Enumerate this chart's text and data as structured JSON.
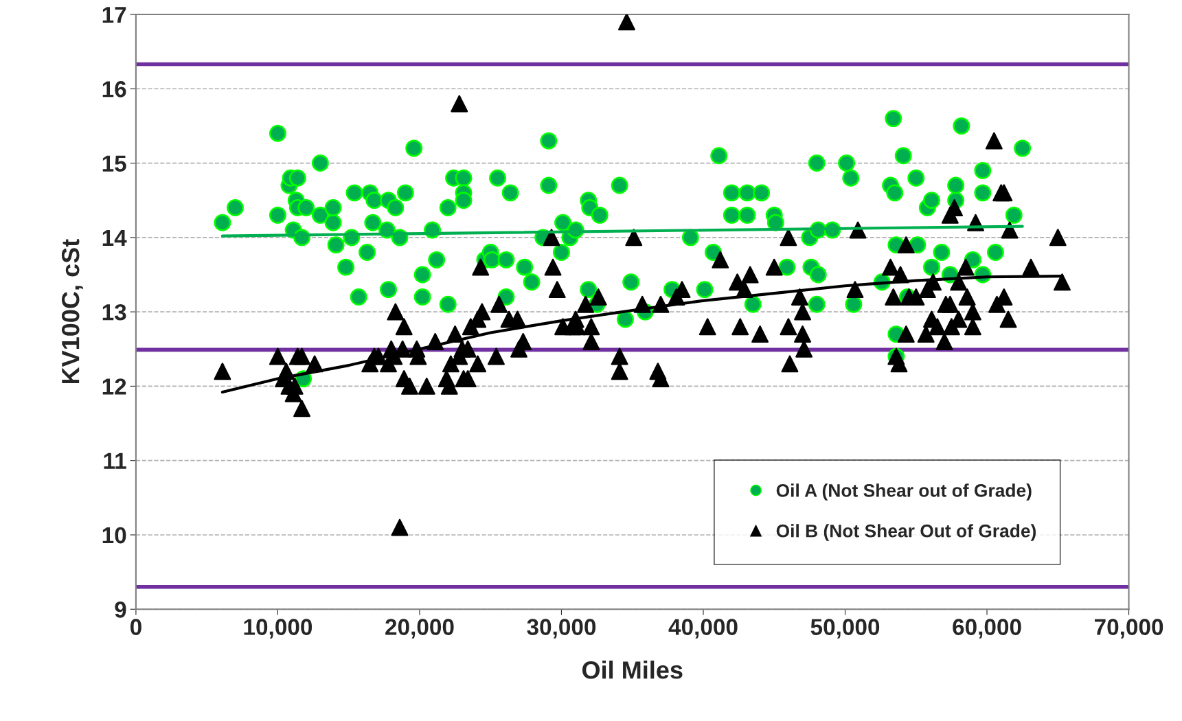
{
  "chart_data": {
    "type": "scatter",
    "xlabel": "Oil Miles",
    "ylabel": "KV100C, cSt",
    "xlim": [
      0,
      70000
    ],
    "xticks": [
      0,
      {
        "value": 10000,
        "label": "10,000"
      },
      {
        "value": 20000,
        "label": "20,000"
      },
      {
        "value": 30000,
        "label": "30,000"
      },
      {
        "value": 40000,
        "label": "40,000"
      },
      {
        "value": 50000,
        "label": "50,000"
      },
      {
        "value": 60000,
        "label": "60,000"
      },
      {
        "value": 70000,
        "label": "70,000"
      }
    ],
    "ylim": [
      9,
      17
    ],
    "yticks": [
      9,
      10,
      11,
      12,
      13,
      14,
      15,
      16,
      17
    ],
    "grid": "y",
    "legend": "bottom right",
    "ref_lines": [
      {
        "axis": "y",
        "value": 16.33,
        "color": "#7030a0"
      },
      {
        "axis": "y",
        "value": 12.49,
        "color": "#7030a0"
      },
      {
        "axis": "y",
        "value": 9.3,
        "color": "#7030a0"
      }
    ],
    "series": [
      {
        "name": "Oil A (Not Shear out of Grade)",
        "marker": "circle",
        "color": "#00b050",
        "x": [
          6100,
          7000,
          10000,
          10000,
          10800,
          10900,
          11100,
          11300,
          11400,
          11400,
          11700,
          11800,
          12000,
          13000,
          13000,
          13900,
          13900,
          14100,
          14800,
          15200,
          15400,
          15700,
          16300,
          16500,
          16700,
          16800,
          17700,
          17800,
          17800,
          18300,
          18600,
          19000,
          19600,
          20200,
          20200,
          20900,
          21200,
          22000,
          22000,
          22400,
          23100,
          23100,
          23100,
          24600,
          25000,
          25100,
          25500,
          26100,
          26100,
          26400,
          27400,
          27900,
          28700,
          29100,
          29100,
          30000,
          30100,
          30600,
          31000,
          31900,
          32000,
          31900,
          32500,
          32700,
          34100,
          34500,
          34900,
          35900,
          37800,
          39100,
          40100,
          40700,
          41100,
          42000,
          42000,
          43100,
          43100,
          43500,
          44100,
          45000,
          45100,
          45900,
          47500,
          47600,
          48000,
          48100,
          48000,
          48100,
          49100,
          50100,
          50400,
          50600,
          52600,
          53200,
          53400,
          53500,
          53600,
          53600,
          53600,
          54100,
          54400,
          55000,
          55100,
          55800,
          56100,
          56100,
          56800,
          57400,
          57800,
          57800,
          58200,
          59000,
          59700,
          59700,
          59700,
          60600,
          61900,
          62500
        ],
        "values": [
          14.2,
          14.4,
          15.4,
          14.3,
          14.7,
          14.8,
          14.1,
          14.5,
          14.4,
          14.8,
          14.0,
          12.1,
          14.4,
          15.0,
          14.3,
          14.2,
          14.4,
          13.9,
          13.6,
          14.0,
          14.6,
          13.2,
          13.8,
          14.6,
          14.2,
          14.5,
          14.1,
          14.5,
          13.3,
          14.4,
          14.0,
          14.6,
          15.2,
          13.5,
          13.2,
          14.1,
          13.7,
          13.1,
          14.4,
          14.8,
          14.8,
          14.6,
          14.5,
          13.7,
          13.8,
          13.7,
          14.8,
          13.7,
          13.2,
          14.6,
          13.6,
          13.4,
          14.0,
          15.3,
          14.7,
          13.8,
          14.2,
          14.0,
          14.1,
          14.5,
          14.4,
          13.3,
          13.1,
          14.3,
          14.7,
          12.9,
          13.4,
          13.0,
          13.3,
          14.0,
          13.3,
          13.8,
          15.1,
          14.6,
          14.3,
          14.6,
          14.3,
          13.1,
          14.6,
          14.3,
          14.2,
          13.6,
          14.0,
          13.6,
          15.0,
          14.1,
          13.1,
          13.5,
          14.1,
          15.0,
          14.8,
          13.1,
          13.4,
          14.7,
          15.6,
          14.6,
          13.9,
          12.7,
          12.4,
          15.1,
          13.2,
          14.8,
          13.9,
          14.4,
          14.5,
          13.6,
          13.8,
          13.5,
          14.5,
          14.7,
          15.5,
          13.7,
          14.9,
          14.6,
          13.5,
          13.8,
          14.3,
          15.2
        ]
      },
      {
        "name": "Oil B (Not Shear Out of Grade)",
        "marker": "triangle",
        "color": "#000000",
        "x": [
          6100,
          10000,
          10400,
          10600,
          10800,
          11100,
          11200,
          11400,
          11700,
          11700,
          12600,
          16500,
          16800,
          17100,
          17800,
          18000,
          18200,
          18300,
          18600,
          18800,
          18900,
          18900,
          19300,
          19800,
          19900,
          20500,
          21100,
          21900,
          22100,
          22200,
          22500,
          22800,
          22800,
          23000,
          23100,
          23400,
          23400,
          23600,
          24100,
          24100,
          24300,
          24400,
          25400,
          25600,
          26300,
          26900,
          27000,
          27300,
          29300,
          29400,
          29700,
          30100,
          30800,
          31000,
          31100,
          31700,
          32100,
          32100,
          32600,
          34100,
          34100,
          34600,
          35100,
          35700,
          36800,
          37000,
          37000,
          38100,
          38500,
          40300,
          41200,
          42400,
          42600,
          42900,
          43300,
          44000,
          45000,
          46000,
          46000,
          46100,
          46800,
          47000,
          47000,
          47100,
          50900,
          50700,
          53200,
          53400,
          53600,
          53900,
          53800,
          54300,
          54300,
          54500,
          55000,
          55700,
          55800,
          56100,
          56200,
          56500,
          57000,
          57100,
          57400,
          57400,
          57500,
          57700,
          58000,
          58000,
          58500,
          58600,
          59000,
          59200,
          59000,
          60500,
          60700,
          61000,
          61200,
          61200,
          61500,
          61600,
          63100,
          65000,
          65300
        ],
        "values": [
          12.2,
          12.4,
          12.1,
          12.2,
          12.0,
          11.9,
          12.0,
          12.4,
          12.4,
          11.7,
          12.3,
          12.3,
          12.4,
          12.4,
          12.3,
          12.5,
          12.4,
          13.0,
          10.1,
          12.5,
          12.1,
          12.8,
          12.0,
          12.5,
          12.4,
          12.0,
          12.6,
          12.1,
          12.0,
          12.3,
          12.7,
          12.4,
          15.8,
          12.5,
          12.1,
          12.1,
          12.5,
          12.8,
          12.9,
          12.3,
          13.6,
          13.0,
          12.4,
          13.1,
          12.9,
          12.9,
          12.5,
          12.6,
          14.0,
          13.6,
          13.3,
          12.8,
          12.8,
          12.9,
          12.8,
          13.1,
          12.8,
          12.6,
          13.2,
          12.4,
          12.2,
          16.9,
          14.0,
          13.1,
          12.2,
          12.1,
          13.1,
          13.2,
          13.3,
          12.8,
          13.7,
          13.4,
          12.8,
          13.3,
          13.5,
          12.7,
          13.6,
          14.0,
          12.8,
          12.3,
          13.2,
          13.0,
          12.7,
          12.5,
          14.1,
          13.3,
          13.6,
          13.2,
          12.4,
          13.5,
          12.3,
          13.9,
          12.7,
          13.2,
          13.2,
          12.7,
          13.3,
          12.9,
          13.4,
          12.8,
          12.6,
          13.1,
          13.1,
          14.3,
          12.8,
          14.4,
          13.4,
          12.9,
          13.6,
          13.2,
          12.8,
          14.2,
          13.0,
          15.3,
          13.1,
          14.6,
          14.6,
          13.2,
          12.9,
          14.1,
          13.6,
          14.0,
          13.4
        ]
      },
      {
        "type": "line",
        "color": "#00b050",
        "x": [
          6100,
          62500
        ],
        "values": [
          14.02,
          14.15
        ]
      },
      {
        "type": "line",
        "color": "#000000",
        "x": [
          6100,
          10000,
          15000,
          20000,
          25000,
          30000,
          35000,
          40000,
          45000,
          50000,
          55000,
          60000,
          65300
        ],
        "values": [
          11.92,
          12.1,
          12.28,
          12.5,
          12.72,
          12.88,
          13.02,
          13.15,
          13.25,
          13.35,
          13.42,
          13.47,
          13.48
        ]
      }
    ]
  }
}
